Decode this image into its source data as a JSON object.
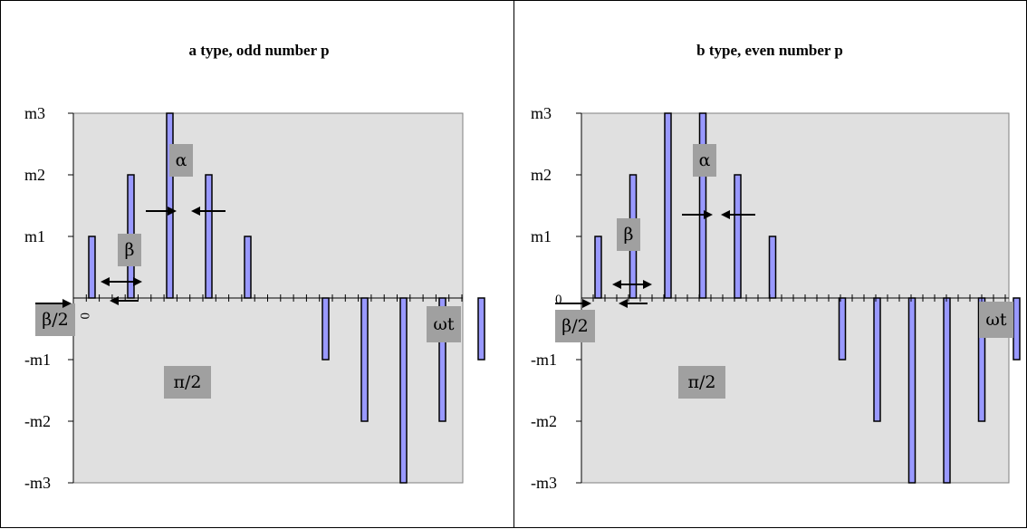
{
  "chart_data": [
    {
      "type": "bar",
      "title": "a type, odd number p",
      "y_tick_labels": [
        "m3",
        "m2",
        "m1",
        "-m1",
        "-m2",
        "-m3"
      ],
      "y_levels": {
        "m1": 1,
        "m2": 2,
        "m3": 3
      },
      "ylim": [
        -3,
        3
      ],
      "origin_label": "0",
      "grid": false,
      "legend": "none",
      "pulses": [
        {
          "x": 1,
          "value": 1
        },
        {
          "x": 2,
          "value": 2
        },
        {
          "x": 3,
          "value": 3
        },
        {
          "x": 4,
          "value": 2
        },
        {
          "x": 5,
          "value": 1
        },
        {
          "x": 7,
          "value": -1
        },
        {
          "x": 8,
          "value": -2
        },
        {
          "x": 9,
          "value": -3
        },
        {
          "x": 10,
          "value": -2
        },
        {
          "x": 11,
          "value": -1
        }
      ],
      "annotations": {
        "alpha": "α",
        "beta": "β",
        "beta_half": "β/2",
        "pi_half": "π/2",
        "omega_t": "ωt"
      }
    },
    {
      "type": "bar",
      "title": "b type, even number p",
      "y_tick_labels": [
        "m3",
        "m2",
        "m1",
        "-m1",
        "-m2",
        "-m3"
      ],
      "y_levels": {
        "m1": 1,
        "m2": 2,
        "m3": 3
      },
      "ylim": [
        -3,
        3
      ],
      "origin_label": "0",
      "grid": false,
      "legend": "none",
      "pulses": [
        {
          "x": 1,
          "value": 1
        },
        {
          "x": 2,
          "value": 2
        },
        {
          "x": 3,
          "value": 3
        },
        {
          "x": 4,
          "value": 3
        },
        {
          "x": 5,
          "value": 2
        },
        {
          "x": 6,
          "value": 1
        },
        {
          "x": 8,
          "value": -1
        },
        {
          "x": 9,
          "value": -2
        },
        {
          "x": 10,
          "value": -3
        },
        {
          "x": 11,
          "value": -3
        },
        {
          "x": 12,
          "value": -2
        },
        {
          "x": 13,
          "value": -1
        }
      ],
      "annotations": {
        "alpha": "α",
        "beta": "β",
        "beta_half": "β/2",
        "pi_half": "π/2",
        "omega_t": "ωt"
      }
    }
  ],
  "colors": {
    "bar_fill": "#9999ff",
    "bar_stroke": "#000000",
    "plot_background": "#e0e0e0",
    "label_background": "#a0a0a0"
  }
}
